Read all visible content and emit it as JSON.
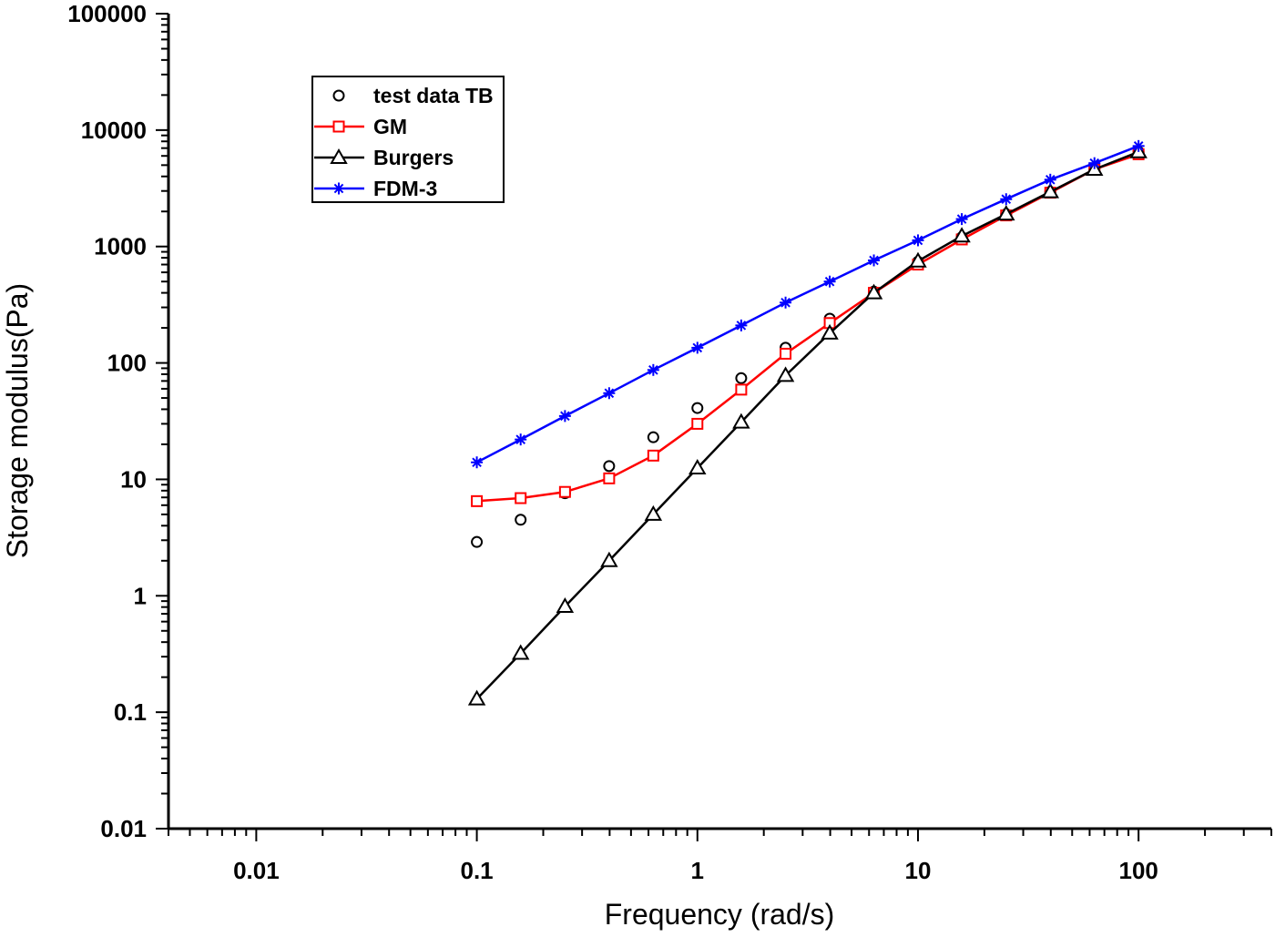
{
  "chart_data": {
    "type": "line",
    "xlabel": "Frequency (rad/s)",
    "ylabel": "Storage modulus(Pa)",
    "x_scale": "log",
    "y_scale": "log",
    "xlim": [
      0.004,
      400
    ],
    "ylim": [
      0.01,
      100000
    ],
    "x_ticks": [
      {
        "value": 0.01,
        "label": "0.01"
      },
      {
        "value": 0.1,
        "label": "0.1"
      },
      {
        "value": 1,
        "label": "1"
      },
      {
        "value": 10,
        "label": "10"
      },
      {
        "value": 100,
        "label": "100"
      }
    ],
    "y_ticks": [
      {
        "value": 0.01,
        "label": "0.01"
      },
      {
        "value": 0.1,
        "label": "0.1"
      },
      {
        "value": 1,
        "label": "1"
      },
      {
        "value": 10,
        "label": "10"
      },
      {
        "value": 100,
        "label": "100"
      },
      {
        "value": 1000,
        "label": "1000"
      },
      {
        "value": 10000,
        "label": "10000"
      },
      {
        "value": 100000,
        "label": "100000"
      }
    ],
    "grid": false,
    "legend_position": "top-left",
    "series": [
      {
        "name": "test data TB",
        "color": "#000000",
        "marker": "circle",
        "line": false,
        "x": [
          0.1,
          0.158,
          0.251,
          0.398,
          0.631,
          1,
          1.58,
          2.51,
          3.98,
          6.31,
          10,
          15.8,
          25.1,
          39.8,
          63.1,
          100
        ],
        "y": [
          2.9,
          4.5,
          7.6,
          13,
          23,
          41,
          74,
          135,
          240,
          410,
          740,
          1200,
          1900,
          2950,
          4600,
          6500
        ]
      },
      {
        "name": "GM",
        "color": "#ff0000",
        "marker": "square",
        "line": true,
        "x": [
          0.1,
          0.158,
          0.251,
          0.398,
          0.631,
          1,
          1.58,
          2.51,
          3.98,
          6.31,
          10,
          15.8,
          25.1,
          39.8,
          63.1,
          100
        ],
        "y": [
          6.5,
          6.9,
          7.8,
          10.2,
          16,
          30,
          59,
          120,
          220,
          400,
          700,
          1150,
          1850,
          2900,
          4600,
          6200
        ]
      },
      {
        "name": "Burgers",
        "color": "#000000",
        "marker": "triangle",
        "line": true,
        "x": [
          0.1,
          0.158,
          0.251,
          0.398,
          0.631,
          1,
          1.58,
          2.51,
          3.98,
          6.31,
          10,
          15.8,
          25.1,
          39.8,
          63.1,
          100
        ],
        "y": [
          0.13,
          0.32,
          0.81,
          2.0,
          5.0,
          12.5,
          31,
          78,
          180,
          400,
          750,
          1230,
          1900,
          2950,
          4600,
          6500
        ]
      },
      {
        "name": "FDM-3",
        "color": "#0000ff",
        "marker": "asterisk",
        "line": true,
        "x": [
          0.1,
          0.158,
          0.251,
          0.398,
          0.631,
          1,
          1.58,
          2.51,
          3.98,
          6.31,
          10,
          15.8,
          25.1,
          39.8,
          63.1,
          100
        ],
        "y": [
          14,
          22,
          35,
          55,
          87,
          135,
          210,
          330,
          500,
          760,
          1130,
          1720,
          2550,
          3750,
          5200,
          7300
        ]
      }
    ]
  }
}
